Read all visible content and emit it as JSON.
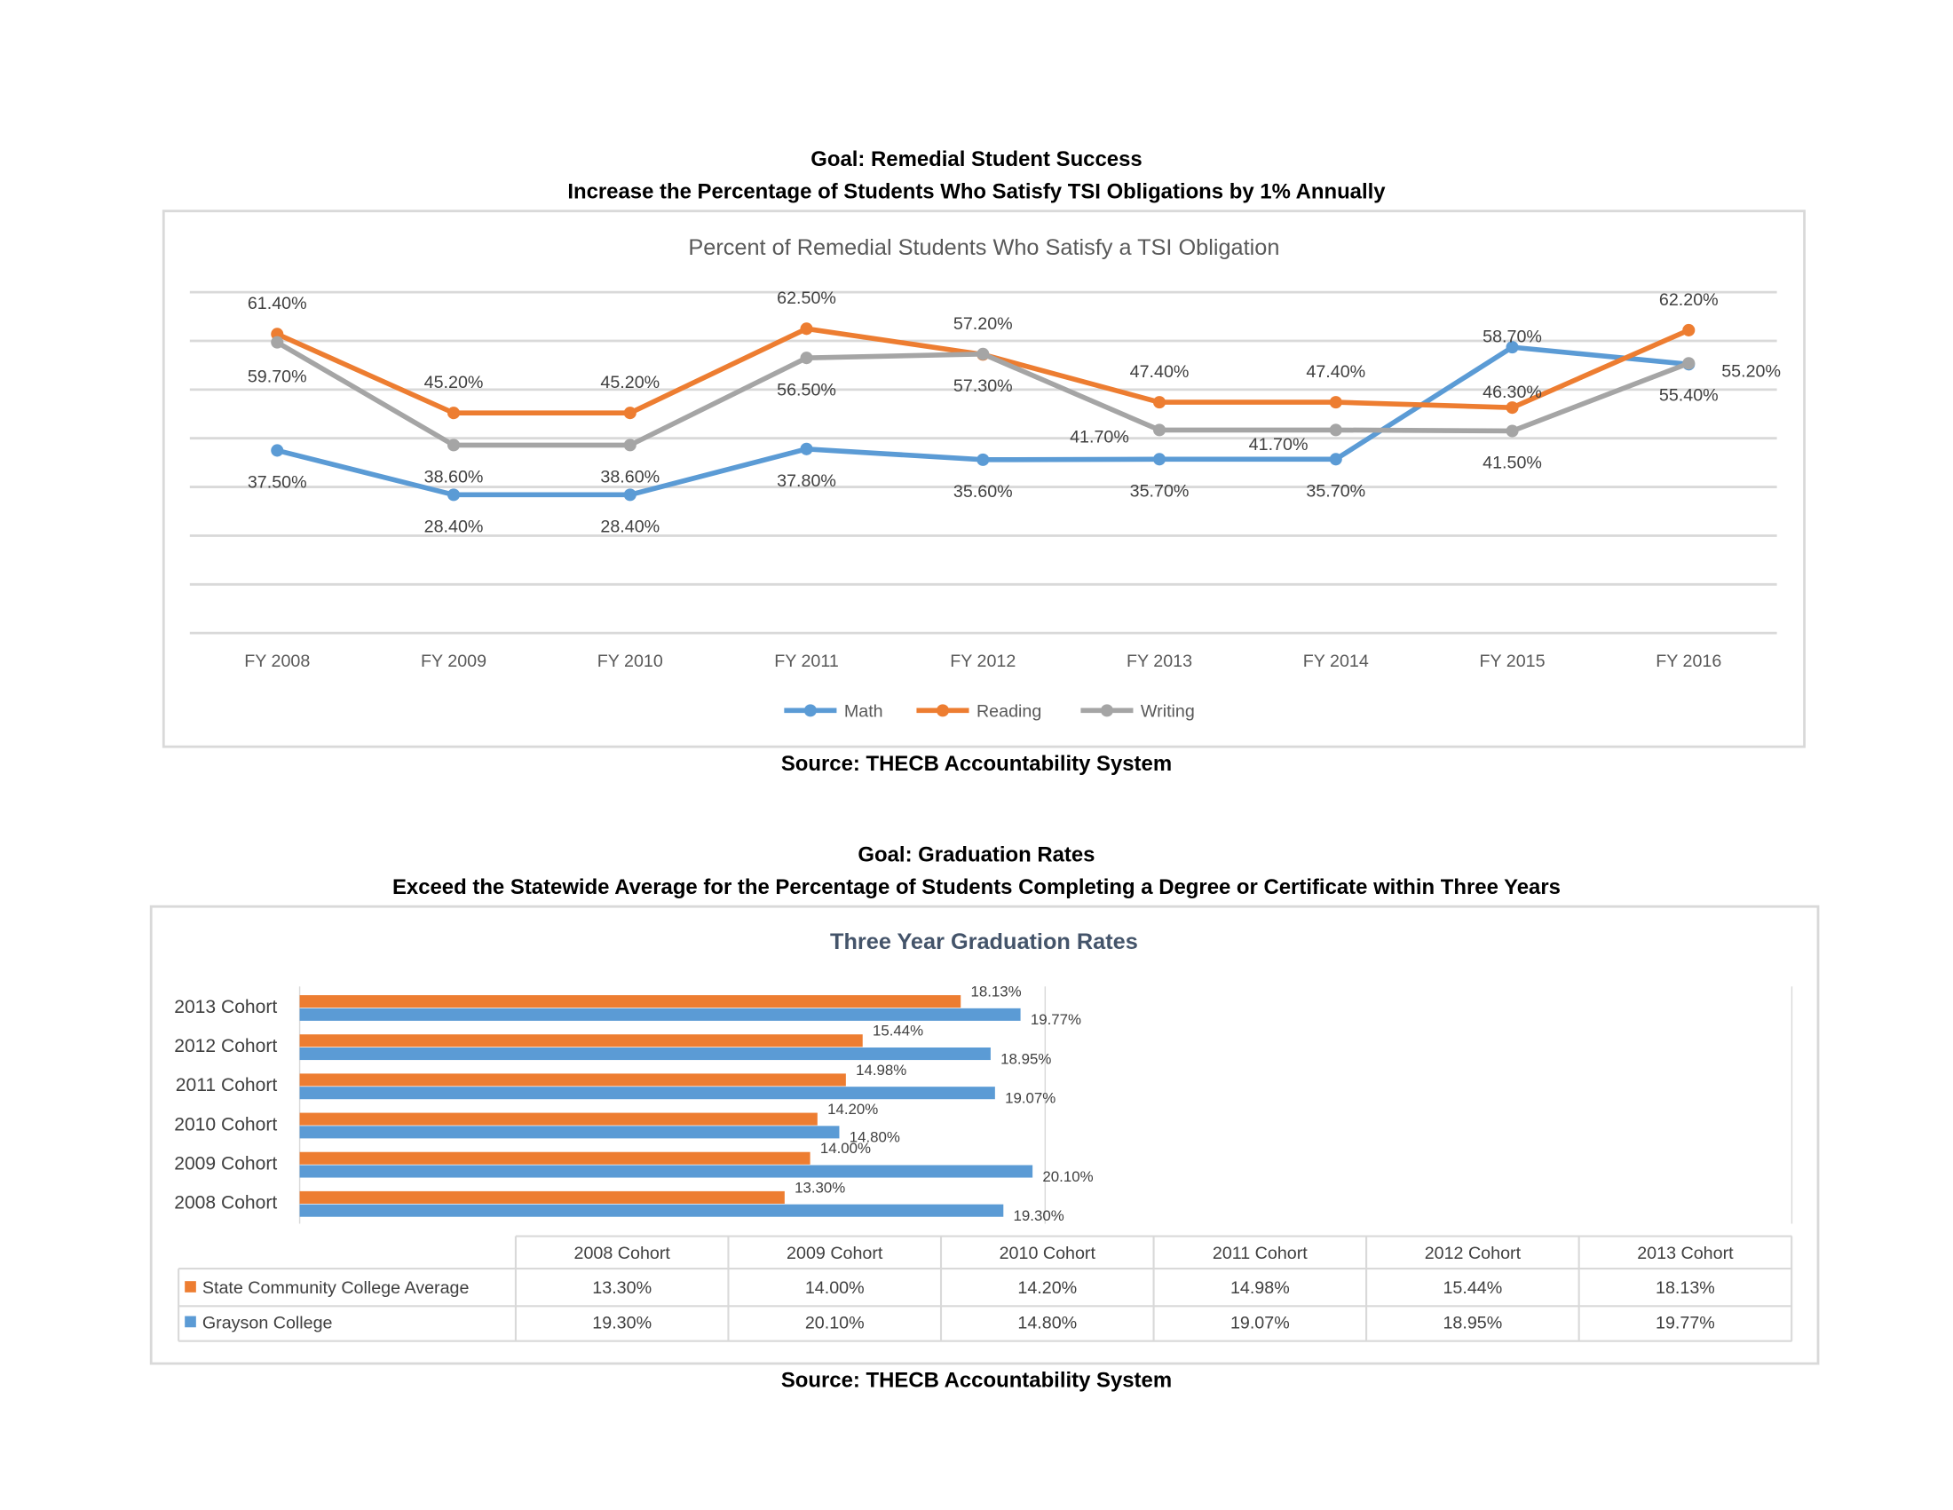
{
  "section1": {
    "goal": "Goal: Remedial Student Success",
    "objective": "Increase the Percentage of Students Who Satisfy TSI Obligations by 1% Annually",
    "source": "Source: THECB Accountability System"
  },
  "section2": {
    "goal": "Goal: Graduation Rates",
    "objective": "Exceed the Statewide Average for the Percentage of Students Completing a Degree or Certificate within Three Years",
    "source": "Source: THECB Accountability System"
  },
  "chart_data": [
    {
      "type": "line",
      "title": "Percent of Remedial Students Who Satisfy a TSI Obligation",
      "categories": [
        "FY 2008",
        "FY 2009",
        "FY 2010",
        "FY 2011",
        "FY 2012",
        "FY 2013",
        "FY 2014",
        "FY 2015",
        "FY 2016"
      ],
      "ylim": [
        0,
        70
      ],
      "grid": true,
      "legend": "bottom",
      "series": [
        {
          "name": "Math",
          "color": "#5B9BD5",
          "values": [
            37.5,
            28.4,
            28.4,
            37.8,
            35.6,
            35.7,
            35.7,
            58.7,
            55.2
          ],
          "labels": [
            "37.50%",
            "28.40%",
            "28.40%",
            "37.80%",
            "35.60%",
            "35.70%",
            "35.70%",
            "58.70%",
            "55.20%"
          ]
        },
        {
          "name": "Reading",
          "color": "#ED7D31",
          "values": [
            61.4,
            45.2,
            45.2,
            62.5,
            57.2,
            47.4,
            47.4,
            46.3,
            62.2
          ],
          "labels": [
            "61.40%",
            "45.20%",
            "45.20%",
            "62.50%",
            "57.20%",
            "47.40%",
            "47.40%",
            "46.30%",
            "62.20%"
          ]
        },
        {
          "name": "Writing",
          "color": "#A5A5A5",
          "values": [
            59.7,
            38.6,
            38.6,
            56.5,
            57.3,
            41.7,
            41.7,
            41.5,
            55.4
          ],
          "labels": [
            "59.70%",
            "38.60%",
            "38.60%",
            "56.50%",
            "57.30%",
            "41.70%",
            "41.70%",
            "41.50%",
            "55.40%"
          ]
        }
      ]
    },
    {
      "type": "bar",
      "orientation": "horizontal",
      "title": "Three Year Graduation Rates",
      "categories": [
        "2008 Cohort",
        "2009 Cohort",
        "2010 Cohort",
        "2011 Cohort",
        "2012 Cohort",
        "2013 Cohort"
      ],
      "legend": "data-table",
      "series": [
        {
          "name": "State Community College Average",
          "color": "#ED7D31",
          "values": [
            13.3,
            14.0,
            14.2,
            14.98,
            15.44,
            18.13
          ],
          "labels": [
            "13.30%",
            "14.00%",
            "14.20%",
            "14.98%",
            "15.44%",
            "18.13%"
          ]
        },
        {
          "name": "Grayson College",
          "color": "#5B9BD5",
          "values": [
            19.3,
            20.1,
            14.8,
            19.07,
            18.95,
            19.77
          ],
          "labels": [
            "19.30%",
            "20.10%",
            "14.80%",
            "19.07%",
            "18.95%",
            "19.77%"
          ]
        }
      ]
    }
  ]
}
